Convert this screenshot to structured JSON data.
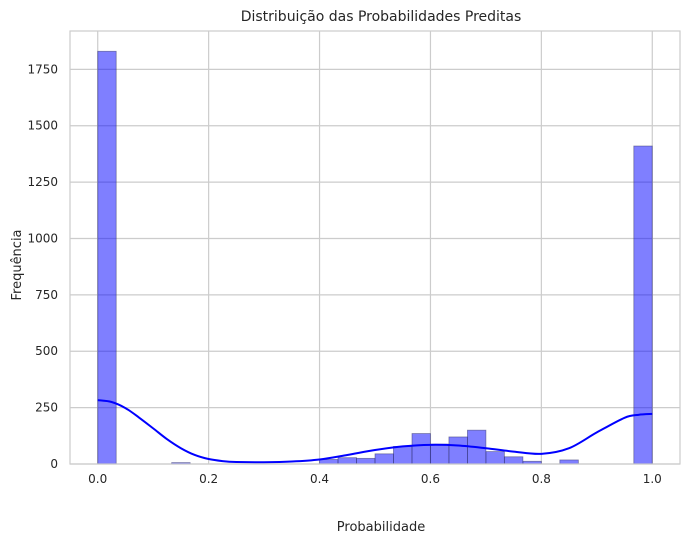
{
  "chart_data": {
    "type": "bar",
    "title": "Distribuição das Probabilidades Preditas",
    "xlabel": "Probabilidade",
    "ylabel": "Frequência",
    "xlim": [
      -0.05,
      1.05
    ],
    "ylim": [
      0,
      1920
    ],
    "xticks": [
      0.0,
      0.2,
      0.4,
      0.6,
      0.8,
      1.0
    ],
    "xtick_labels": [
      "0.0",
      "0.2",
      "0.4",
      "0.6",
      "0.8",
      "1.0"
    ],
    "yticks": [
      0,
      250,
      500,
      750,
      1000,
      1250,
      1500,
      1750
    ],
    "ytick_labels": [
      "0",
      "250",
      "500",
      "750",
      "1000",
      "1250",
      "1500",
      "1750"
    ],
    "grid": true,
    "bar_color": "#0000ff",
    "kde_color": "#0000ff",
    "bins": [
      {
        "x0": 0.0,
        "x1": 0.0333,
        "count": 1830
      },
      {
        "x0": 0.1333,
        "x1": 0.1667,
        "count": 6
      },
      {
        "x0": 0.4,
        "x1": 0.4333,
        "count": 20
      },
      {
        "x0": 0.4333,
        "x1": 0.4667,
        "count": 28
      },
      {
        "x0": 0.4667,
        "x1": 0.5,
        "count": 25
      },
      {
        "x0": 0.5,
        "x1": 0.5333,
        "count": 45
      },
      {
        "x0": 0.5333,
        "x1": 0.5667,
        "count": 78
      },
      {
        "x0": 0.5667,
        "x1": 0.6,
        "count": 135
      },
      {
        "x0": 0.6,
        "x1": 0.6333,
        "count": 88
      },
      {
        "x0": 0.6333,
        "x1": 0.6667,
        "count": 120
      },
      {
        "x0": 0.6667,
        "x1": 0.7,
        "count": 150
      },
      {
        "x0": 0.7,
        "x1": 0.7333,
        "count": 55
      },
      {
        "x0": 0.7333,
        "x1": 0.7667,
        "count": 32
      },
      {
        "x0": 0.7667,
        "x1": 0.8,
        "count": 12
      },
      {
        "x0": 0.8333,
        "x1": 0.8667,
        "count": 18
      },
      {
        "x0": 0.9667,
        "x1": 1.0,
        "count": 1410
      }
    ],
    "kde": {
      "x": [
        0.0,
        0.025,
        0.05,
        0.075,
        0.1,
        0.125,
        0.15,
        0.175,
        0.2,
        0.225,
        0.25,
        0.3,
        0.35,
        0.4,
        0.45,
        0.5,
        0.55,
        0.6,
        0.65,
        0.7,
        0.75,
        0.8,
        0.85,
        0.9,
        0.95,
        0.975,
        1.0
      ],
      "y": [
        283,
        275,
        248,
        205,
        158,
        110,
        70,
        40,
        22,
        13,
        9,
        8,
        11,
        20,
        40,
        62,
        78,
        85,
        82,
        70,
        55,
        45,
        70,
        140,
        205,
        218,
        222
      ]
    }
  }
}
